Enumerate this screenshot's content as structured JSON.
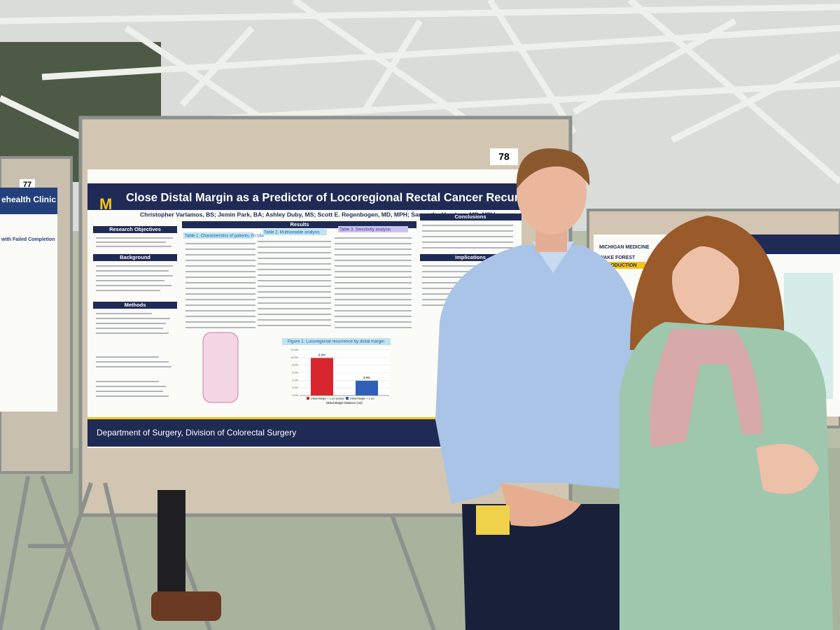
{
  "board_numbers": [
    "78",
    "77"
  ],
  "poster": {
    "title": "Close Distal Margin as a Predictor of Locoregional Rectal Cancer Recurrence",
    "authors": "Christopher Varlamos, BS; Jemin Park, BA; Ashley Duby, MS; Scott E. Regenbogen, MD, MPH; Samantha Hendren, MD, MPH",
    "sections": [
      "Research Objectives",
      "Background",
      "Methods",
      "Results",
      "Conclusions",
      "Implications"
    ],
    "tables": [
      "Table 1. Characteristics of patients, N=164",
      "Table 2. Multivariable analysis",
      "Table 3. Sensitivity analysis"
    ],
    "figure": {
      "title": "Figure 1. Locoregional recurrence by distal margin",
      "categories": [
        "Distal Margin < 1 cm (close)",
        "Distal Margin > 1 cm"
      ],
      "values": [
        9.9,
        3.9
      ],
      "value_labels": [
        "9.9%",
        "3.9%"
      ],
      "colors": [
        "#d9262e",
        "#2f5fb8"
      ],
      "x_label": "Distal Margin Distance (cm)",
      "ylim": [
        0,
        12
      ],
      "yticks": [
        {
          "value": 0,
          "label": "0.0%"
        },
        {
          "value": 2,
          "label": "2.0%"
        },
        {
          "value": 4,
          "label": "4.0%"
        },
        {
          "value": 6,
          "label": "6.0%"
        },
        {
          "value": 8,
          "label": "8.0%"
        },
        {
          "value": 10,
          "label": "10.0%"
        },
        {
          "value": 12,
          "label": "12.0%"
        }
      ]
    },
    "footer": "Department of Surgery, Division of Colorectal Surgery"
  },
  "left_poster": {
    "title": "ehealth Clinic",
    "subtitle": "with Failed Completion"
  },
  "right_poster": {
    "logos": [
      "MICHIGAN MEDICINE",
      "WAKE FOREST"
    ],
    "section": "INTRODUCTION"
  }
}
